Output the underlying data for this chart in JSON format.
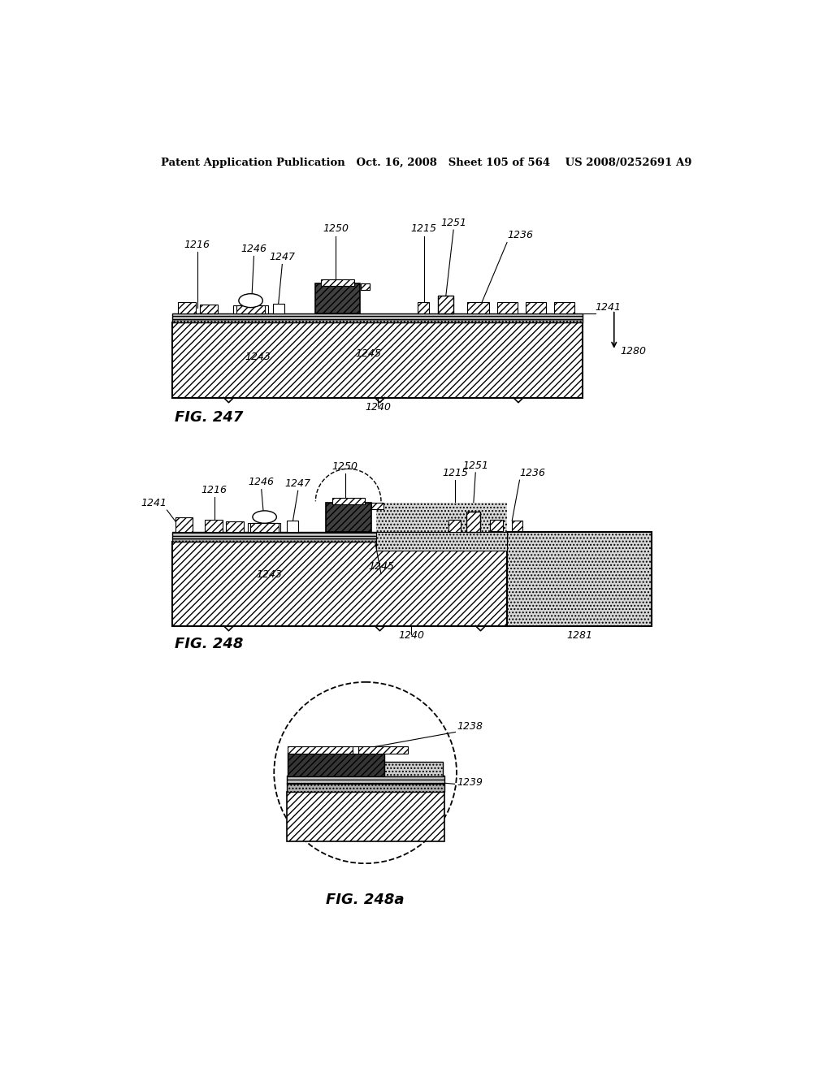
{
  "header": "Patent Application Publication   Oct. 16, 2008   Sheet 105 of 564    US 2008/0252691 A9",
  "bg_color": "#ffffff",
  "fig247_label": "FIG. 247",
  "fig248_label": "FIG. 248",
  "fig248a_label": "FIG. 248a"
}
